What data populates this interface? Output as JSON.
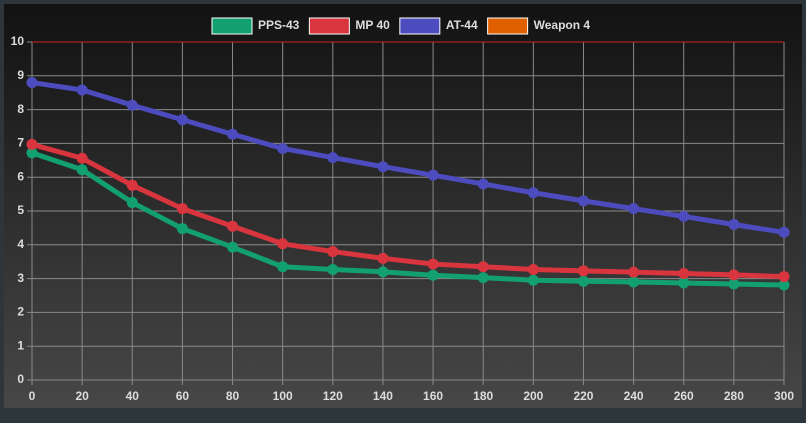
{
  "chart_data": {
    "type": "line",
    "x": [
      0,
      20,
      40,
      60,
      80,
      100,
      120,
      140,
      160,
      180,
      200,
      220,
      240,
      260,
      280,
      300
    ],
    "series": [
      {
        "name": "PPS-43",
        "color": "#12a070",
        "values": [
          6.72,
          6.22,
          5.25,
          4.48,
          3.93,
          3.35,
          3.27,
          3.2,
          3.1,
          3.03,
          2.95,
          2.92,
          2.9,
          2.87,
          2.84,
          2.81
        ]
      },
      {
        "name": "MP 40",
        "color": "#d8353e",
        "values": [
          6.97,
          6.56,
          5.76,
          5.07,
          4.55,
          4.03,
          3.8,
          3.6,
          3.43,
          3.35,
          3.27,
          3.23,
          3.19,
          3.15,
          3.11,
          3.06
        ]
      },
      {
        "name": "AT-44",
        "color": "#4c4cbf",
        "values": [
          8.8,
          8.58,
          8.13,
          7.7,
          7.27,
          6.85,
          6.58,
          6.31,
          6.06,
          5.8,
          5.54,
          5.3,
          5.07,
          4.84,
          4.6,
          4.37
        ]
      },
      {
        "name": "Weapon 4",
        "color": "#e06000",
        "values": [
          null,
          null,
          null,
          null,
          null,
          null,
          null,
          null,
          null,
          null,
          null,
          null,
          null,
          null,
          null,
          null
        ]
      }
    ],
    "xlim": [
      0,
      300
    ],
    "xticks": [
      0,
      20,
      40,
      60,
      80,
      100,
      120,
      140,
      160,
      180,
      200,
      220,
      240,
      260,
      280,
      300
    ],
    "ylim": [
      0,
      10
    ],
    "yticks": [
      0,
      1,
      2,
      3,
      4,
      5,
      6,
      7,
      8,
      9,
      10
    ],
    "grid": true,
    "legend": "top"
  }
}
